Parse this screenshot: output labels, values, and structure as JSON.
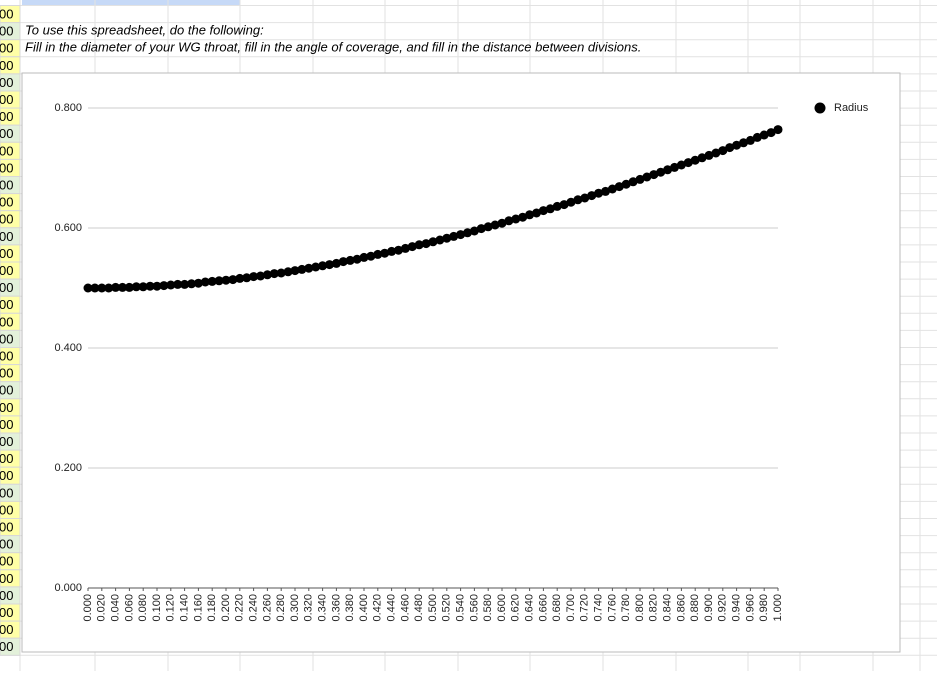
{
  "sheet": {
    "column_a_cells": [
      "00",
      "00",
      "00",
      "00",
      "00",
      "00",
      "00",
      "00",
      "00",
      "00",
      "00",
      "00",
      "00",
      "00",
      "00",
      "00",
      "00",
      "00",
      "00",
      "00",
      "00",
      "00",
      "00",
      "00",
      "00",
      "00",
      "00",
      "00",
      "00",
      "00",
      "00",
      "00",
      "00",
      "00",
      "00",
      "00",
      "00",
      "00"
    ],
    "instructions": [
      "To use this spreadsheet, do the following:",
      "Fill in the diameter of your WG throat, fill in the angle of coverage, and fill in the distance between divisions."
    ]
  },
  "chart_data": {
    "type": "scatter",
    "x": [
      0,
      0.01,
      0.02,
      0.03,
      0.04,
      0.05,
      0.06,
      0.07,
      0.08,
      0.09,
      0.1,
      0.11,
      0.12,
      0.13,
      0.14,
      0.15,
      0.16,
      0.17,
      0.18,
      0.19,
      0.2,
      0.21,
      0.22,
      0.23,
      0.24,
      0.25,
      0.26,
      0.27,
      0.28,
      0.29,
      0.3,
      0.31,
      0.32,
      0.33,
      0.34,
      0.35,
      0.36,
      0.37,
      0.38,
      0.39,
      0.4,
      0.41,
      0.42,
      0.43,
      0.44,
      0.45,
      0.46,
      0.47,
      0.48,
      0.49,
      0.5,
      0.51,
      0.52,
      0.53,
      0.54,
      0.55,
      0.56,
      0.57,
      0.58,
      0.59,
      0.6,
      0.61,
      0.62,
      0.63,
      0.64,
      0.65,
      0.66,
      0.67,
      0.68,
      0.69,
      0.7,
      0.71,
      0.72,
      0.73,
      0.74,
      0.75,
      0.76,
      0.77,
      0.78,
      0.79,
      0.8,
      0.81,
      0.82,
      0.83,
      0.84,
      0.85,
      0.86,
      0.87,
      0.88,
      0.89,
      0.9,
      0.91,
      0.92,
      0.93,
      0.94,
      0.95,
      0.96,
      0.97,
      0.98,
      0.99,
      1
    ],
    "series": [
      {
        "name": "Radius",
        "color": "#000000",
        "values": [
          0.5,
          0.5,
          0.5,
          0.5,
          0.501,
          0.501,
          0.501,
          0.502,
          0.502,
          0.503,
          0.503,
          0.504,
          0.505,
          0.506,
          0.506,
          0.507,
          0.508,
          0.51,
          0.511,
          0.512,
          0.513,
          0.514,
          0.516,
          0.517,
          0.519,
          0.52,
          0.522,
          0.524,
          0.525,
          0.527,
          0.529,
          0.531,
          0.533,
          0.535,
          0.537,
          0.539,
          0.541,
          0.544,
          0.546,
          0.548,
          0.551,
          0.553,
          0.556,
          0.558,
          0.561,
          0.563,
          0.566,
          0.569,
          0.572,
          0.574,
          0.577,
          0.58,
          0.583,
          0.586,
          0.589,
          0.592,
          0.595,
          0.599,
          0.602,
          0.605,
          0.608,
          0.612,
          0.615,
          0.618,
          0.622,
          0.625,
          0.629,
          0.632,
          0.636,
          0.639,
          0.643,
          0.647,
          0.65,
          0.654,
          0.658,
          0.661,
          0.665,
          0.669,
          0.673,
          0.677,
          0.681,
          0.685,
          0.689,
          0.693,
          0.697,
          0.701,
          0.705,
          0.709,
          0.713,
          0.717,
          0.721,
          0.725,
          0.729,
          0.734,
          0.738,
          0.742,
          0.746,
          0.751,
          0.755,
          0.759,
          0.764
        ]
      }
    ],
    "xlim": [
      0,
      1
    ],
    "xticks": [
      {
        "value": 0,
        "label": "0.000"
      },
      {
        "value": 0.02,
        "label": "0.020"
      },
      {
        "value": 0.04,
        "label": "0.040"
      },
      {
        "value": 0.06,
        "label": "0.060"
      },
      {
        "value": 0.08,
        "label": "0.080"
      },
      {
        "value": 0.1,
        "label": "0.100"
      },
      {
        "value": 0.12,
        "label": "0.120"
      },
      {
        "value": 0.14,
        "label": "0.140"
      },
      {
        "value": 0.16,
        "label": "0.160"
      },
      {
        "value": 0.18,
        "label": "0.180"
      },
      {
        "value": 0.2,
        "label": "0.200"
      },
      {
        "value": 0.22,
        "label": "0.220"
      },
      {
        "value": 0.24,
        "label": "0.240"
      },
      {
        "value": 0.26,
        "label": "0.260"
      },
      {
        "value": 0.28,
        "label": "0.280"
      },
      {
        "value": 0.3,
        "label": "0.300"
      },
      {
        "value": 0.32,
        "label": "0.320"
      },
      {
        "value": 0.34,
        "label": "0.340"
      },
      {
        "value": 0.36,
        "label": "0.360"
      },
      {
        "value": 0.38,
        "label": "0.380"
      },
      {
        "value": 0.4,
        "label": "0.400"
      },
      {
        "value": 0.42,
        "label": "0.420"
      },
      {
        "value": 0.44,
        "label": "0.440"
      },
      {
        "value": 0.46,
        "label": "0.460"
      },
      {
        "value": 0.48,
        "label": "0.480"
      },
      {
        "value": 0.5,
        "label": "0.500"
      },
      {
        "value": 0.52,
        "label": "0.520"
      },
      {
        "value": 0.54,
        "label": "0.540"
      },
      {
        "value": 0.56,
        "label": "0.560"
      },
      {
        "value": 0.58,
        "label": "0.580"
      },
      {
        "value": 0.6,
        "label": "0.600"
      },
      {
        "value": 0.62,
        "label": "0.620"
      },
      {
        "value": 0.64,
        "label": "0.640"
      },
      {
        "value": 0.66,
        "label": "0.660"
      },
      {
        "value": 0.68,
        "label": "0.680"
      },
      {
        "value": 0.7,
        "label": "0.700"
      },
      {
        "value": 0.72,
        "label": "0.720"
      },
      {
        "value": 0.74,
        "label": "0.740"
      },
      {
        "value": 0.76,
        "label": "0.760"
      },
      {
        "value": 0.78,
        "label": "0.780"
      },
      {
        "value": 0.8,
        "label": "0.800"
      },
      {
        "value": 0.82,
        "label": "0.820"
      },
      {
        "value": 0.84,
        "label": "0.840"
      },
      {
        "value": 0.86,
        "label": "0.860"
      },
      {
        "value": 0.88,
        "label": "0.880"
      },
      {
        "value": 0.9,
        "label": "0.900"
      },
      {
        "value": 0.92,
        "label": "0.920"
      },
      {
        "value": 0.94,
        "label": "0.940"
      },
      {
        "value": 0.96,
        "label": "0.960"
      },
      {
        "value": 0.98,
        "label": "0.980"
      },
      {
        "value": 1,
        "label": "1.000"
      }
    ],
    "ylim": [
      0,
      0.8
    ],
    "yticks": [
      {
        "value": 0,
        "label": "0.000"
      },
      {
        "value": 0.2,
        "label": "0.200"
      },
      {
        "value": 0.4,
        "label": "0.400"
      },
      {
        "value": 0.6,
        "label": "0.600"
      },
      {
        "value": 0.8,
        "label": "0.800"
      }
    ],
    "grid": true,
    "legend": "right"
  }
}
